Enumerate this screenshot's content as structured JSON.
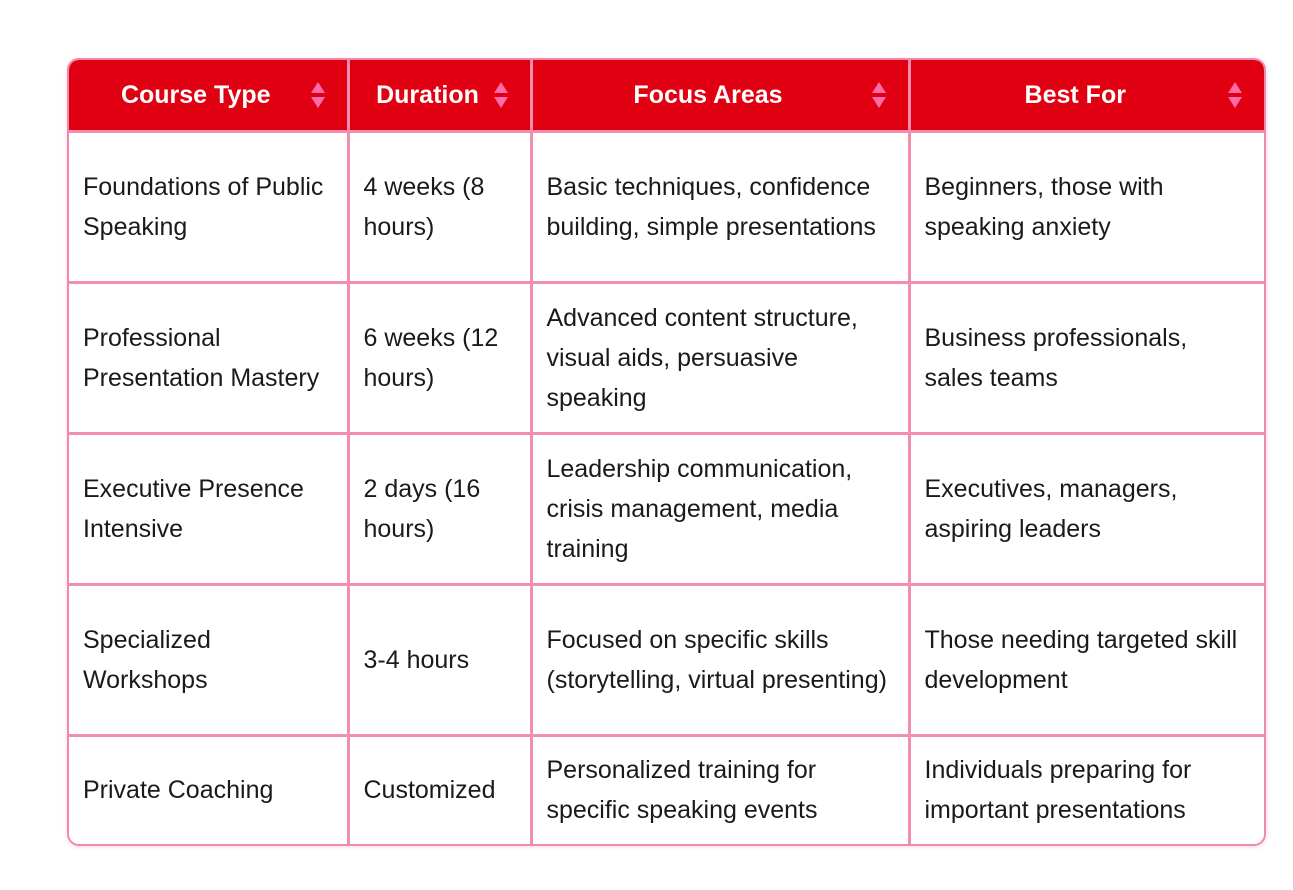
{
  "table": {
    "headers": [
      "Course Type",
      "Duration",
      "Focus Areas",
      "Best For"
    ],
    "rows": [
      [
        "Foundations of Public Speaking",
        "4 weeks (8 hours)",
        "Basic techniques, confidence building, simple presentations",
        "Beginners, those with speaking anxiety"
      ],
      [
        "Professional Presentation Mastery",
        "6 weeks (12 hours)",
        "Advanced content structure, visual aids, persuasive speaking",
        "Business professionals, sales teams"
      ],
      [
        "Executive Presence Intensive",
        "2 days (16 hours)",
        "Leadership communication, crisis management, media training",
        "Executives, managers, aspiring leaders"
      ],
      [
        "Specialized Workshops",
        "3-4 hours",
        "Focused on specific skills (storytelling, virtual presenting)",
        "Those needing targeted skill development"
      ],
      [
        "Private Coaching",
        "Customized",
        "Personalized training for specific speaking events",
        "Individuals preparing for important presentations"
      ]
    ]
  },
  "colors": {
    "header_background": "#e10012",
    "header_text": "#ffffff",
    "grid_lines": "#f28fb0",
    "sort_icon": "#ff6aa8"
  },
  "icons": {
    "header_sort": "sort-icon"
  }
}
